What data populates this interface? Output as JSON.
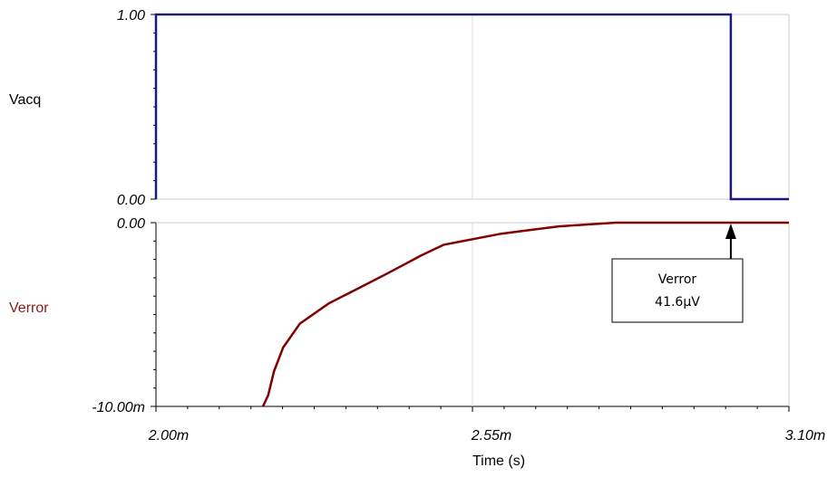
{
  "chart_data": {
    "type": "line",
    "xlabel": "Time (s)",
    "x_ticks": [
      "2.00m",
      "2.55m",
      "3.10m"
    ],
    "xlim": [
      0.002,
      0.0031
    ],
    "panels": [
      {
        "name": "Vacq",
        "label_color": "#000000",
        "line_color": "#1a1a80",
        "ylim": [
          0,
          1
        ],
        "y_ticks": [
          "0.00",
          "1.00"
        ],
        "x": [
          0.002,
          0.002,
          0.002999,
          0.002999,
          0.0031
        ],
        "y": [
          0,
          1,
          1,
          0,
          0
        ]
      },
      {
        "name": "Verror",
        "label_color": "#8b1a1a",
        "line_color": "#800000",
        "ylim": [
          -0.01,
          0
        ],
        "y_ticks": [
          "-10.00m",
          "0.00"
        ],
        "x": [
          0.002186,
          0.002195,
          0.002205,
          0.002221,
          0.00225,
          0.0023,
          0.00235,
          0.0024,
          0.00243,
          0.00246,
          0.0025,
          0.00255,
          0.0026,
          0.00265,
          0.0027,
          0.00275,
          0.0028,
          0.00285,
          0.0029,
          0.003,
          0.0031
        ],
        "y": [
          -0.01,
          -0.0094,
          -0.0081,
          -0.0068,
          -0.0055,
          -0.0044,
          -0.0036,
          -0.0028,
          -0.0023,
          -0.0018,
          -0.0012,
          -0.0009,
          -0.0006,
          -0.0004,
          -0.0002,
          -0.0001,
          0.0,
          0.0,
          0.0,
          0.0,
          0.0
        ]
      }
    ],
    "cursor": {
      "series": "Verror",
      "x": 0.002999,
      "label": "Verror",
      "value": "41.6µV"
    },
    "grid": true
  }
}
